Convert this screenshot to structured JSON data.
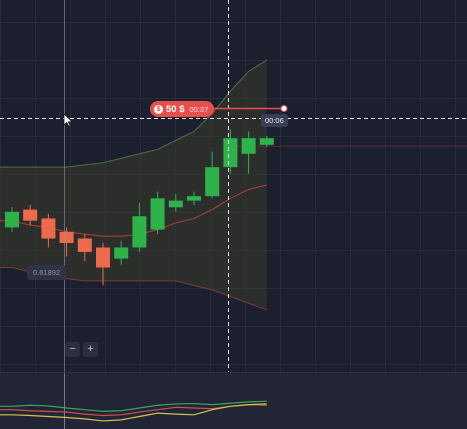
{
  "deal": {
    "coin_icon": "dollar-coin-icon",
    "coin_symbol": "$",
    "amount": "50 $",
    "timer": "00:37"
  },
  "expiry_label": "00:06",
  "crosshair_price": "0.61892",
  "zoom": {
    "minus_label": "−",
    "plus_label": "+"
  },
  "colors": {
    "background": "#1c1f2e",
    "up": "#2db34a",
    "down": "#ef6a4c",
    "deal": "#e8504e",
    "band_fill": "#3a3a2c",
    "band_line": "#4e6e4a",
    "middle_line": "#b0413c"
  },
  "candles": [
    {
      "o": 0.6186,
      "c": 0.6193,
      "h": 0.6195,
      "l": 0.6184
    },
    {
      "o": 0.6194,
      "c": 0.6189,
      "h": 0.6196,
      "l": 0.6187
    },
    {
      "o": 0.619,
      "c": 0.6181,
      "h": 0.6192,
      "l": 0.6177
    },
    {
      "o": 0.6184,
      "c": 0.6179,
      "h": 0.6186,
      "l": 0.6173
    },
    {
      "o": 0.6181,
      "c": 0.6175,
      "h": 0.6183,
      "l": 0.6171
    },
    {
      "o": 0.6177,
      "c": 0.6168,
      "h": 0.6179,
      "l": 0.616
    },
    {
      "o": 0.6172,
      "c": 0.6177,
      "h": 0.618,
      "l": 0.6169
    },
    {
      "o": 0.6177,
      "c": 0.6191,
      "h": 0.6197,
      "l": 0.6175
    },
    {
      "o": 0.6185,
      "c": 0.6199,
      "h": 0.6202,
      "l": 0.6183
    },
    {
      "o": 0.6195,
      "c": 0.6198,
      "h": 0.6201,
      "l": 0.6193
    },
    {
      "o": 0.6198,
      "c": 0.62,
      "h": 0.6202,
      "l": 0.6196
    },
    {
      "o": 0.62,
      "c": 0.6213,
      "h": 0.622,
      "l": 0.6199
    },
    {
      "o": 0.6213,
      "c": 0.6226,
      "h": 0.623,
      "l": 0.621
    },
    {
      "o": 0.6219,
      "c": 0.6226,
      "h": 0.6229,
      "l": 0.621
    },
    {
      "o": 0.6223,
      "c": 0.6226,
      "h": 0.6227,
      "l": 0.6222
    }
  ],
  "bands": {
    "upper": [
      0.6213,
      0.6213,
      0.6213,
      0.6213,
      0.6214,
      0.6215,
      0.6217,
      0.6219,
      0.6221,
      0.6225,
      0.6229,
      0.6237,
      0.6247,
      0.6256,
      0.6261
    ],
    "middle": [
      0.6189,
      0.6187,
      0.6186,
      0.6184,
      0.6183,
      0.6182,
      0.6182,
      0.6183,
      0.6185,
      0.6188,
      0.619,
      0.6194,
      0.6199,
      0.6203,
      0.6205
    ],
    "lower": [
      0.6168,
      0.6166,
      0.6164,
      0.6163,
      0.6162,
      0.6162,
      0.6162,
      0.6162,
      0.6162,
      0.6162,
      0.616,
      0.6158,
      0.6155,
      0.6152,
      0.6149
    ]
  },
  "deal_price": 0.6226,
  "oscillator": {
    "green": [
      0.55,
      0.58,
      0.56,
      0.5,
      0.45,
      0.4,
      0.42,
      0.5,
      0.58,
      0.62,
      0.63,
      0.6,
      0.64,
      0.68,
      0.7
    ],
    "red": [
      0.45,
      0.42,
      0.4,
      0.38,
      0.32,
      0.28,
      0.3,
      0.38,
      0.45,
      0.52,
      0.5,
      0.48,
      0.55,
      0.6,
      0.58
    ],
    "yellow": [
      0.3,
      0.28,
      0.25,
      0.22,
      0.18,
      0.12,
      0.15,
      0.25,
      0.35,
      0.32,
      0.3,
      0.45,
      0.55,
      0.6,
      0.62
    ]
  }
}
